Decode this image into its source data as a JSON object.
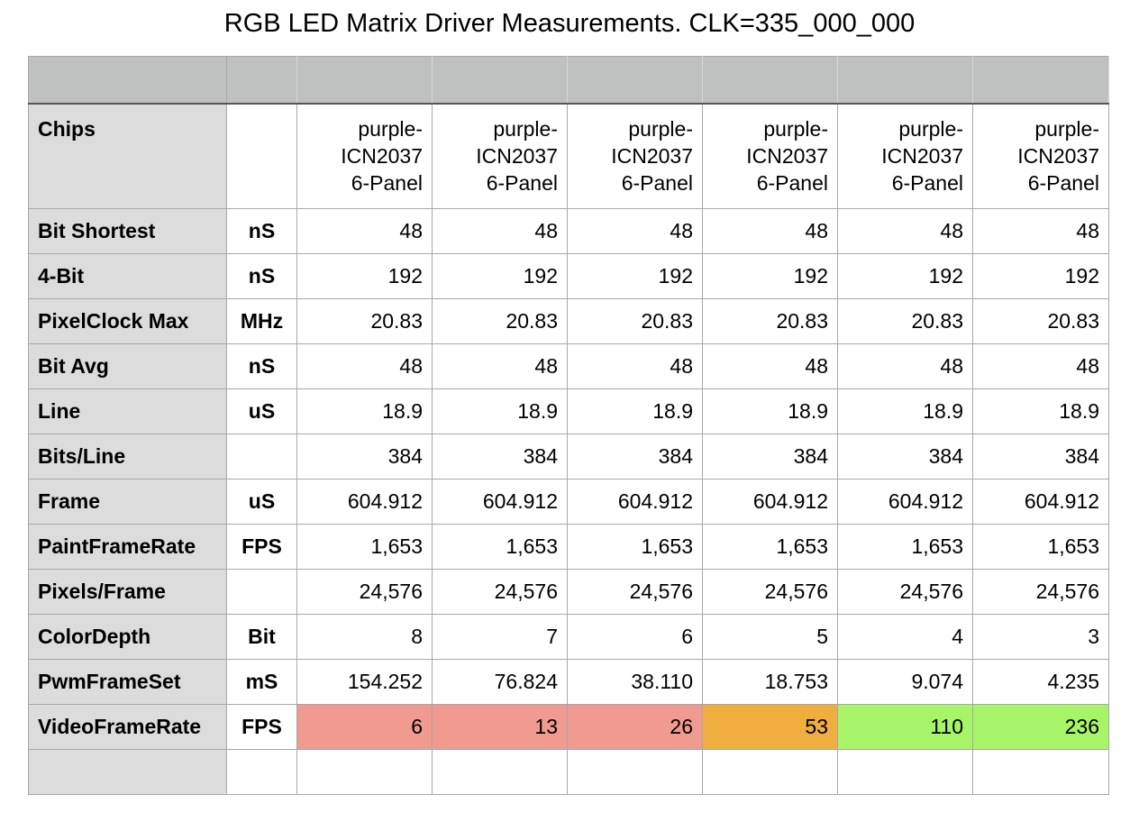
{
  "title": "RGB LED Matrix Driver Measurements. CLK=335_000_000",
  "header_label": "Chips",
  "chip_columns": [
    [
      "purple-",
      "ICN2037",
      "6-Panel"
    ],
    [
      "purple-",
      "ICN2037",
      "6-Panel"
    ],
    [
      "purple-",
      "ICN2037",
      "6-Panel"
    ],
    [
      "purple-",
      "ICN2037",
      "6-Panel"
    ],
    [
      "purple-",
      "ICN2037",
      "6-Panel"
    ],
    [
      "purple-",
      "ICN2037",
      "6-Panel"
    ]
  ],
  "rows": [
    {
      "label": "Bit Shortest",
      "unit": "nS",
      "values": [
        "48",
        "48",
        "48",
        "48",
        "48",
        "48"
      ]
    },
    {
      "label": "4-Bit",
      "unit": "nS",
      "values": [
        "192",
        "192",
        "192",
        "192",
        "192",
        "192"
      ]
    },
    {
      "label": "PixelClock Max",
      "unit": "MHz",
      "values": [
        "20.83",
        "20.83",
        "20.83",
        "20.83",
        "20.83",
        "20.83"
      ]
    },
    {
      "label": "Bit Avg",
      "unit": "nS",
      "values": [
        "48",
        "48",
        "48",
        "48",
        "48",
        "48"
      ]
    },
    {
      "label": "Line",
      "unit": "uS",
      "values": [
        "18.9",
        "18.9",
        "18.9",
        "18.9",
        "18.9",
        "18.9"
      ]
    },
    {
      "label": "Bits/Line",
      "unit": "",
      "values": [
        "384",
        "384",
        "384",
        "384",
        "384",
        "384"
      ]
    },
    {
      "label": "Frame",
      "unit": "uS",
      "values": [
        "604.912",
        "604.912",
        "604.912",
        "604.912",
        "604.912",
        "604.912"
      ]
    },
    {
      "label": "PaintFrameRate",
      "unit": "FPS",
      "values": [
        "1,653",
        "1,653",
        "1,653",
        "1,653",
        "1,653",
        "1,653"
      ]
    },
    {
      "label": "Pixels/Frame",
      "unit": "",
      "values": [
        "24,576",
        "24,576",
        "24,576",
        "24,576",
        "24,576",
        "24,576"
      ]
    },
    {
      "label": "ColorDepth",
      "unit": "Bit",
      "values": [
        "8",
        "7",
        "6",
        "5",
        "4",
        "3"
      ]
    },
    {
      "label": "PwmFrameSet",
      "unit": "mS",
      "values": [
        "154.252",
        "76.824",
        "38.110",
        "18.753",
        "9.074",
        "4.235"
      ]
    },
    {
      "label": "VideoFrameRate",
      "unit": "FPS",
      "values": [
        "6",
        "13",
        "26",
        "53",
        "110",
        "236"
      ]
    }
  ],
  "colors": {
    "videoframerate_cells": [
      "#f09a90",
      "#f09a90",
      "#f09a90",
      "#f0ae3e",
      "#a8f469",
      "#a8f469"
    ],
    "header_fill": "#bfc1c0",
    "rowhead_fill": "#dcdcdc"
  }
}
